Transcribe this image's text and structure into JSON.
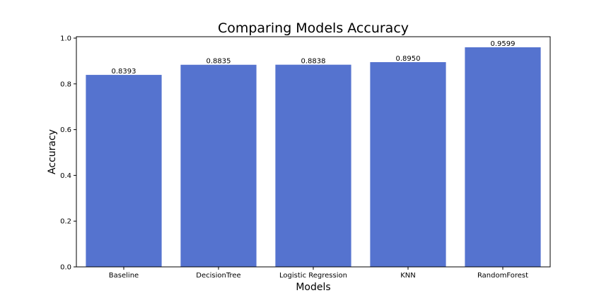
{
  "chart_data": {
    "type": "bar",
    "title": "Comparing Models Accuracy",
    "xlabel": "Models",
    "ylabel": "Accuracy",
    "categories": [
      "Baseline",
      "DecisionTree",
      "Logistic Regression",
      "KNN",
      "RandomForest"
    ],
    "values": [
      0.8393,
      0.8835,
      0.8838,
      0.895,
      0.9599
    ],
    "value_labels": [
      "0.8393",
      "0.8835",
      "0.8838",
      "0.8950",
      "0.9599"
    ],
    "ylim": [
      0,
      1.0
    ],
    "yticks": [
      0.0,
      0.2,
      0.4,
      0.6,
      0.8,
      1.0
    ],
    "ytick_labels": [
      "0.0",
      "0.2",
      "0.4",
      "0.6",
      "0.8",
      "1.0"
    ],
    "bar_color": "#5573cf",
    "grid": false,
    "legend": "none"
  }
}
